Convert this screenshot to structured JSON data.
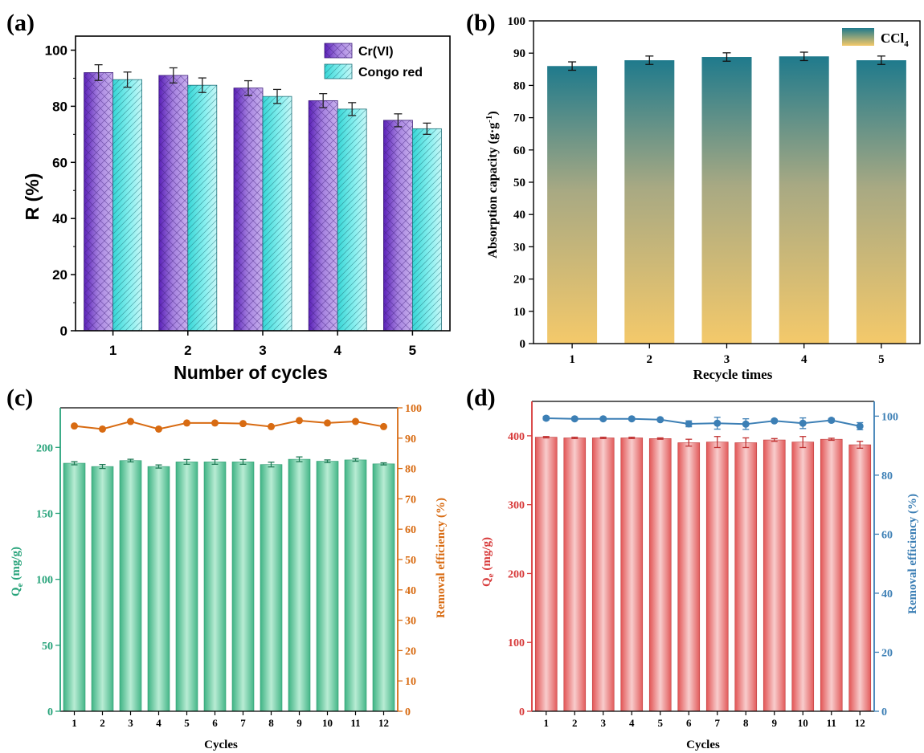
{
  "figure": {
    "panels": [
      {
        "id": "a",
        "label": "(a)"
      },
      {
        "id": "b",
        "label": "(b)"
      },
      {
        "id": "c",
        "label": "(c)"
      },
      {
        "id": "d",
        "label": "(d)"
      }
    ]
  },
  "colors": {
    "a_cr": "#9b6fd6",
    "a_cr_dark": "#6a2bc4",
    "a_congo": "#5fe6e6",
    "a_congo_edge": "#2f9ea7",
    "b_top": "#1f7a8c",
    "b_bottom": "#f4c96a",
    "c_bar": "#7fd3ad",
    "c_bar_dark": "#2e9d72",
    "c_axis_left": "#27a37a",
    "c_line": "#d86b12",
    "d_bar": "#e86a6a",
    "d_bar_light": "#f6c3c3",
    "d_axis_left": "#d73a3a",
    "d_line": "#3c7fb5"
  },
  "chart_data": [
    {
      "panel": "a",
      "type": "bar",
      "categories": [
        "1",
        "2",
        "3",
        "4",
        "5"
      ],
      "series": [
        {
          "name": "Cr(VI)",
          "values": [
            92,
            91,
            86.5,
            82,
            75
          ],
          "errors": [
            2.8,
            2.7,
            2.6,
            2.5,
            2.3
          ]
        },
        {
          "name": "Congo red",
          "values": [
            89.5,
            87.5,
            83.5,
            79,
            72
          ],
          "errors": [
            2.7,
            2.6,
            2.5,
            2.3,
            2.0
          ]
        }
      ],
      "xlabel": "Number of cycles",
      "ylabel": "R (%)",
      "ylim": [
        0,
        105
      ],
      "yticks": [
        0,
        20,
        40,
        60,
        80,
        100
      ],
      "legend": "top-right",
      "grid": false
    },
    {
      "panel": "b",
      "type": "bar",
      "categories": [
        "1",
        "2",
        "3",
        "4",
        "5"
      ],
      "series": [
        {
          "name": "CCl4",
          "values": [
            86,
            87.8,
            88.8,
            89,
            87.8
          ],
          "errors": [
            1.3,
            1.3,
            1.3,
            1.3,
            1.3
          ]
        }
      ],
      "legend_base": "CCl",
      "legend_sub": "4",
      "xlabel": "Recycle times",
      "ylabel_base": "Absorption capacity (g·g",
      "ylabel_sup": "-1",
      "ylabel_end": ")",
      "ylim": [
        0,
        100
      ],
      "yticks": [
        0,
        10,
        20,
        30,
        40,
        50,
        60,
        70,
        80,
        90,
        100
      ],
      "legend": "top-right",
      "grid": false
    },
    {
      "panel": "c",
      "type": "bar",
      "categories": [
        "1",
        "2",
        "3",
        "4",
        "5",
        "6",
        "7",
        "8",
        "9",
        "10",
        "11",
        "12"
      ],
      "series": [
        {
          "name": "Qe (mg/g)",
          "values": [
            188,
            185.5,
            190,
            185.5,
            189,
            189,
            189,
            187,
            191,
            189.5,
            190.5,
            187.5
          ],
          "errors": [
            1.2,
            1.5,
            1.0,
            1.2,
            1.8,
            1.8,
            1.8,
            1.8,
            1.8,
            1.0,
            1.0,
            0.8
          ]
        },
        {
          "name": "Removal efficiency (%)",
          "type": "line",
          "axis": "right",
          "values": [
            94,
            93,
            95.5,
            93,
            95,
            95,
            94.8,
            93.8,
            95.8,
            95,
            95.5,
            93.8
          ]
        }
      ],
      "xlabel": "Cycles",
      "ylabel_base": "Q",
      "ylabel_sub": "e",
      "ylabel_end": " (mg/g)",
      "y2label": "Removal efficiency (%)",
      "ylim": [
        0,
        230
      ],
      "yticks": [
        0,
        50,
        100,
        150,
        200
      ],
      "y2lim": [
        0,
        100
      ],
      "y2ticks": [
        0,
        10,
        20,
        30,
        40,
        50,
        60,
        70,
        80,
        90,
        100
      ],
      "grid": false
    },
    {
      "panel": "d",
      "type": "bar",
      "categories": [
        "1",
        "2",
        "3",
        "4",
        "5",
        "6",
        "7",
        "8",
        "9",
        "10",
        "11",
        "12"
      ],
      "series": [
        {
          "name": "Qe (mg/g)",
          "values": [
            398,
            397,
            397,
            397,
            396,
            390,
            391,
            390,
            394,
            391,
            395,
            387
          ],
          "errors": [
            1,
            1,
            1,
            1,
            1,
            5,
            8,
            7,
            2,
            8,
            1.5,
            5
          ]
        },
        {
          "name": "Removal efficiency (%)",
          "type": "line",
          "axis": "right",
          "values": [
            99.3,
            99.1,
            99.1,
            99.1,
            98.8,
            97.4,
            97.6,
            97.3,
            98.4,
            97.6,
            98.6,
            96.6
          ],
          "errors": [
            0.6,
            0.4,
            0.4,
            0.4,
            0.4,
            1.0,
            2.0,
            1.8,
            0.5,
            1.8,
            0.6,
            1.2
          ]
        }
      ],
      "xlabel": "Cycles",
      "ylabel_base": "Q",
      "ylabel_sub": "e",
      "ylabel_end": " (mg/g)",
      "y2label": "Removal efficiency (%)",
      "ylim": [
        0,
        450
      ],
      "yticks": [
        0,
        100,
        200,
        300,
        400
      ],
      "y2lim": [
        0,
        105
      ],
      "y2ticks": [
        0,
        20,
        40,
        60,
        80,
        100
      ],
      "grid": false
    }
  ]
}
